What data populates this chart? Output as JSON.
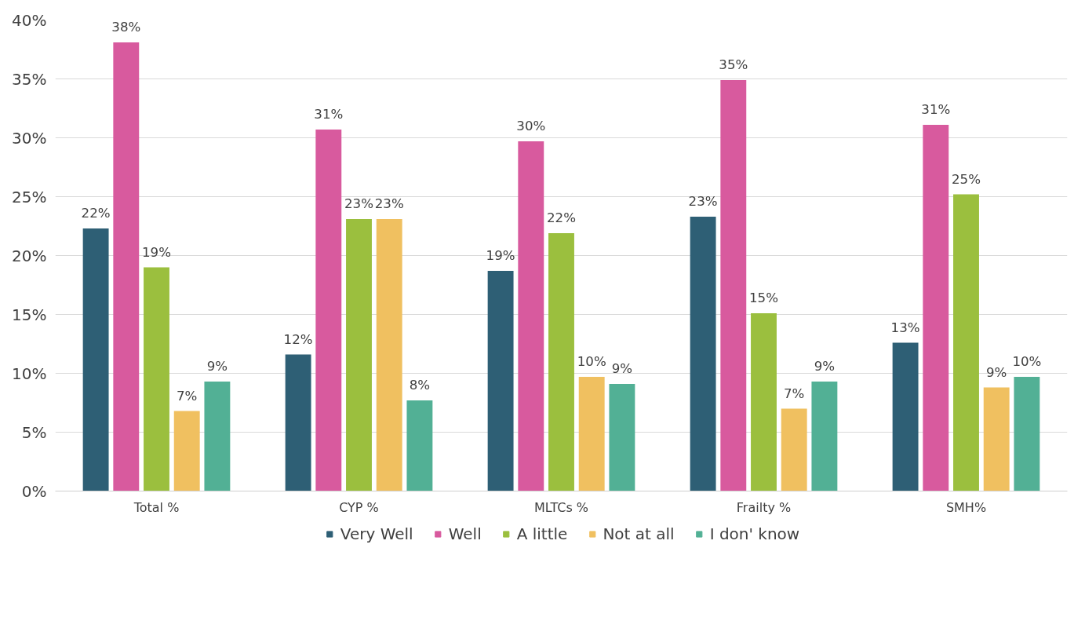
{
  "chart_data": {
    "type": "bar",
    "categories": [
      "Total %",
      "CYP %",
      "MLTCs %",
      "Frailty %",
      "SMH%"
    ],
    "series": [
      {
        "name": "Very Well",
        "color": "#2e5f75",
        "values": [
          22.3,
          11.6,
          18.7,
          23.3,
          12.6
        ],
        "value_labels": [
          "22%",
          "12%",
          "19%",
          "23%",
          "13%"
        ]
      },
      {
        "name": "Well",
        "color": "#d85a9e",
        "values": [
          38.1,
          30.7,
          29.7,
          34.9,
          31.1
        ],
        "value_labels": [
          "38%",
          "31%",
          "30%",
          "35%",
          "31%"
        ]
      },
      {
        "name": "A little",
        "color": "#9bbf3e",
        "values": [
          19.0,
          23.1,
          21.9,
          15.1,
          25.2
        ],
        "value_labels": [
          "19%",
          "23%",
          "22%",
          "15%",
          "25%"
        ]
      },
      {
        "name": "Not at all",
        "color": "#f0c060",
        "values": [
          6.8,
          23.1,
          9.7,
          7.0,
          8.8
        ],
        "value_labels": [
          "7%",
          "23%",
          "10%",
          "7%",
          "9%"
        ]
      },
      {
        "name": "I don' know",
        "color": "#52b095",
        "values": [
          9.3,
          7.7,
          9.1,
          9.3,
          9.7
        ],
        "value_labels": [
          "9%",
          "8%",
          "9%",
          "9%",
          "10%"
        ]
      }
    ],
    "ylim": [
      0,
      40
    ],
    "yticks": [
      {
        "value": 0,
        "label": "0%"
      },
      {
        "value": 5,
        "label": "5%"
      },
      {
        "value": 10,
        "label": "10%"
      },
      {
        "value": 15,
        "label": "15%"
      },
      {
        "value": 20,
        "label": "20%"
      },
      {
        "value": 25,
        "label": "25%"
      },
      {
        "value": 30,
        "label": "30%"
      },
      {
        "value": 35,
        "label": "35%"
      },
      {
        "value": 40,
        "label": "40%"
      }
    ],
    "grid": "y",
    "legend": "bottom"
  }
}
